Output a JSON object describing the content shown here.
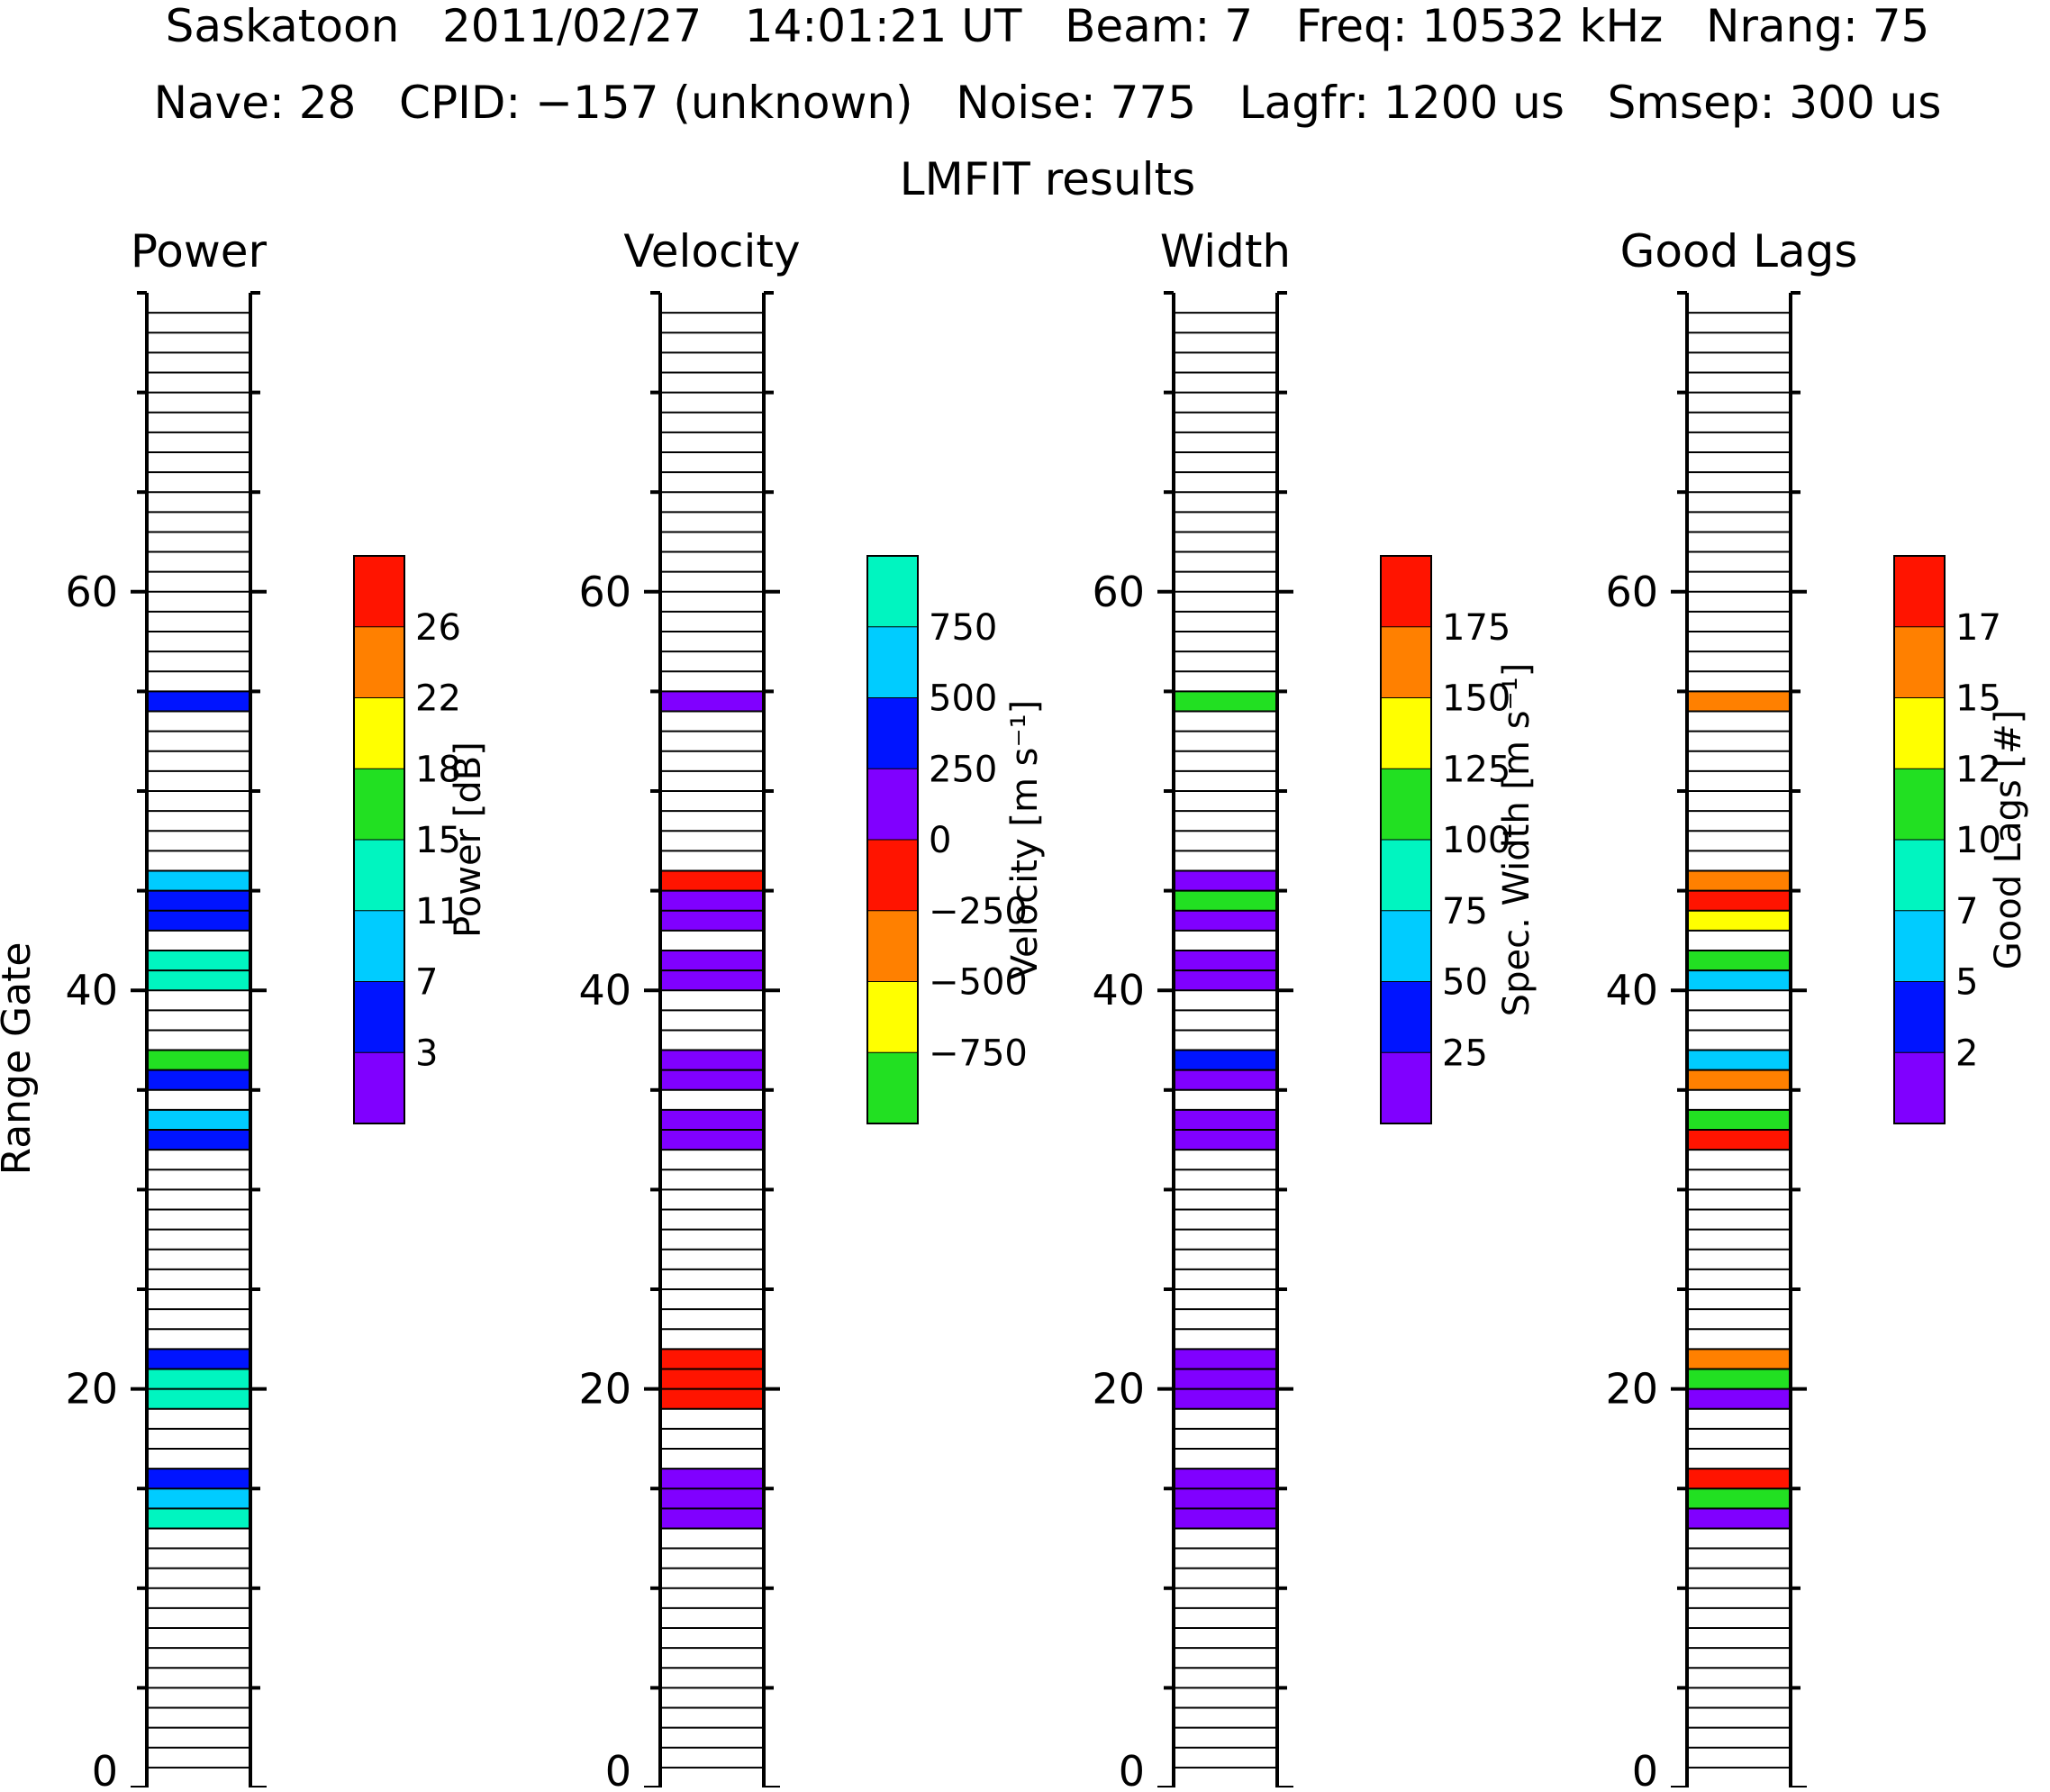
{
  "header": {
    "line1": "Saskatoon   2011/02/27   14:01:21 UT   Beam: 7   Freq: 10532 kHz   Nrang: 75",
    "line2": "Nave: 28   CPID: −157 (unknown)   Noise: 775   Lagfr: 1200 us   Smsep: 300 us",
    "line3": "LMFIT results"
  },
  "chart_data": {
    "type": "heatmap",
    "ylabel": "Range Gate",
    "ylim": [
      0,
      75
    ],
    "yticks": [
      0,
      20,
      40,
      60
    ],
    "yticks_minor_step": 5,
    "gate_count": 75,
    "panels": [
      {
        "title": "Power",
        "colorbar_label": "Power [dB]",
        "colorbar_ticks": [
          "26",
          "22",
          "18",
          "15",
          "11",
          "7",
          "3"
        ],
        "colors": [
          "#8000ff",
          "#0014ff",
          "#00ccff",
          "#00f5c0",
          "#22e022",
          "#ffff00",
          "#ff8000",
          "#ff1400"
        ],
        "cells": [
          {
            "gate": 54,
            "color": "#0014ff"
          },
          {
            "gate": 45,
            "color": "#00ccff"
          },
          {
            "gate": 44,
            "color": "#0014ff"
          },
          {
            "gate": 43,
            "color": "#0014ff"
          },
          {
            "gate": 41,
            "color": "#00f5c0"
          },
          {
            "gate": 40,
            "color": "#00f5c0"
          },
          {
            "gate": 36,
            "color": "#22e022"
          },
          {
            "gate": 35,
            "color": "#0014ff"
          },
          {
            "gate": 33,
            "color": "#00ccff"
          },
          {
            "gate": 32,
            "color": "#0014ff"
          },
          {
            "gate": 21,
            "color": "#0014ff"
          },
          {
            "gate": 20,
            "color": "#00f5c0"
          },
          {
            "gate": 19,
            "color": "#00f5c0"
          },
          {
            "gate": 15,
            "color": "#0014ff"
          },
          {
            "gate": 14,
            "color": "#00ccff"
          },
          {
            "gate": 13,
            "color": "#00f5c0"
          }
        ]
      },
      {
        "title": "Velocity",
        "colorbar_label": "Velocity [m s⁻¹]",
        "colorbar_ticks": [
          "750",
          "500",
          "250",
          "0",
          "−250",
          "−500",
          "−750"
        ],
        "colors": [
          "#22e022",
          "#ffff00",
          "#ff8000",
          "#ff1400",
          "#8000ff",
          "#0014ff",
          "#00ccff",
          "#00f5c0"
        ],
        "cells": [
          {
            "gate": 54,
            "color": "#8000ff"
          },
          {
            "gate": 45,
            "color": "#ff1400"
          },
          {
            "gate": 44,
            "color": "#8000ff"
          },
          {
            "gate": 43,
            "color": "#8000ff"
          },
          {
            "gate": 41,
            "color": "#8000ff"
          },
          {
            "gate": 40,
            "color": "#8000ff"
          },
          {
            "gate": 36,
            "color": "#8000ff"
          },
          {
            "gate": 35,
            "color": "#8000ff"
          },
          {
            "gate": 33,
            "color": "#8000ff"
          },
          {
            "gate": 32,
            "color": "#8000ff"
          },
          {
            "gate": 21,
            "color": "#ff1400"
          },
          {
            "gate": 20,
            "color": "#ff1400"
          },
          {
            "gate": 19,
            "color": "#ff1400"
          },
          {
            "gate": 15,
            "color": "#8000ff"
          },
          {
            "gate": 14,
            "color": "#8000ff"
          },
          {
            "gate": 13,
            "color": "#8000ff"
          }
        ]
      },
      {
        "title": "Width",
        "colorbar_label": "Spec. Width [m s⁻¹]",
        "colorbar_ticks": [
          "175",
          "150",
          "125",
          "100",
          "75",
          "50",
          "25"
        ],
        "colors": [
          "#8000ff",
          "#0014ff",
          "#00ccff",
          "#00f5c0",
          "#22e022",
          "#ffff00",
          "#ff8000",
          "#ff1400"
        ],
        "cells": [
          {
            "gate": 54,
            "color": "#22e022"
          },
          {
            "gate": 45,
            "color": "#8000ff"
          },
          {
            "gate": 44,
            "color": "#22e022"
          },
          {
            "gate": 43,
            "color": "#8000ff"
          },
          {
            "gate": 41,
            "color": "#8000ff"
          },
          {
            "gate": 40,
            "color": "#8000ff"
          },
          {
            "gate": 36,
            "color": "#0014ff"
          },
          {
            "gate": 35,
            "color": "#8000ff"
          },
          {
            "gate": 33,
            "color": "#8000ff"
          },
          {
            "gate": 32,
            "color": "#8000ff"
          },
          {
            "gate": 21,
            "color": "#8000ff"
          },
          {
            "gate": 20,
            "color": "#8000ff"
          },
          {
            "gate": 19,
            "color": "#8000ff"
          },
          {
            "gate": 15,
            "color": "#8000ff"
          },
          {
            "gate": 14,
            "color": "#8000ff"
          },
          {
            "gate": 13,
            "color": "#8000ff"
          }
        ]
      },
      {
        "title": "Good Lags",
        "colorbar_label": "Good Lags [#]",
        "colorbar_ticks": [
          "17",
          "15",
          "12",
          "10",
          "7",
          "5",
          "2"
        ],
        "colors": [
          "#8000ff",
          "#0014ff",
          "#00ccff",
          "#00f5c0",
          "#22e022",
          "#ffff00",
          "#ff8000",
          "#ff1400"
        ],
        "cells": [
          {
            "gate": 54,
            "color": "#ff8000"
          },
          {
            "gate": 45,
            "color": "#ff8000"
          },
          {
            "gate": 44,
            "color": "#ff1400"
          },
          {
            "gate": 43,
            "color": "#ffff00"
          },
          {
            "gate": 41,
            "color": "#22e022"
          },
          {
            "gate": 40,
            "color": "#00ccff"
          },
          {
            "gate": 36,
            "color": "#00ccff"
          },
          {
            "gate": 35,
            "color": "#ff8000"
          },
          {
            "gate": 33,
            "color": "#22e022"
          },
          {
            "gate": 32,
            "color": "#ff1400"
          },
          {
            "gate": 21,
            "color": "#ff8000"
          },
          {
            "gate": 20,
            "color": "#22e022"
          },
          {
            "gate": 19,
            "color": "#8000ff"
          },
          {
            "gate": 15,
            "color": "#ff1400"
          },
          {
            "gate": 14,
            "color": "#22e022"
          },
          {
            "gate": 13,
            "color": "#8000ff"
          }
        ]
      }
    ]
  }
}
